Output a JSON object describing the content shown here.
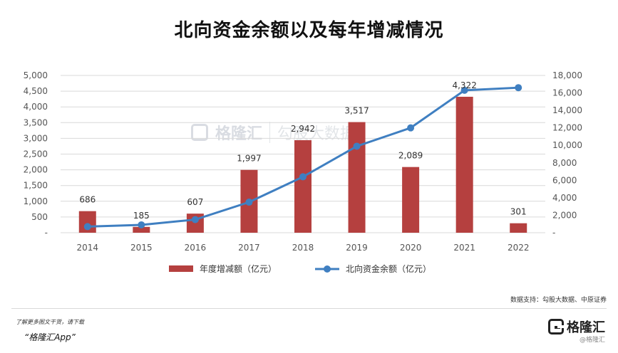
{
  "title": "北向资金余额以及每年增减情况",
  "watermark": {
    "brand": "格隆汇",
    "brand2": "勾股大数据"
  },
  "source": "数据支持：勾股大数据、中原证券",
  "footer": {
    "promo": "了解更多图文干货，请下载",
    "app": "“格隆汇App”",
    "brand": "格隆汇",
    "brand_sub": "@格隆汇"
  },
  "colors": {
    "bar": "#b5403f",
    "line": "#3f7fc1",
    "grid": "#d9d9d9",
    "axis_text": "#555555"
  },
  "chart_data": {
    "type": "bar+line",
    "categories": [
      "2014",
      "2015",
      "2016",
      "2017",
      "2018",
      "2019",
      "2020",
      "2021",
      "2022"
    ],
    "series": [
      {
        "name": "年度增减额（亿元）",
        "type": "bar",
        "axis": "left",
        "values": [
          686,
          185,
          607,
          1997,
          2942,
          3517,
          2089,
          4322,
          301
        ],
        "labels": [
          "686",
          "185",
          "607",
          "1,997",
          "2,942",
          "3,517",
          "2,089",
          "4,322",
          "301"
        ]
      },
      {
        "name": "北向资金余额（亿元）",
        "type": "line",
        "axis": "right",
        "values": [
          700,
          900,
          1500,
          3500,
          6400,
          9900,
          12000,
          16300,
          16600
        ]
      }
    ],
    "y_left": {
      "range": [
        0,
        5000
      ],
      "ticks": [
        "-",
        "500",
        "1,000",
        "1,500",
        "2,000",
        "2,500",
        "3,000",
        "3,500",
        "4,000",
        "4,500",
        "5,000"
      ]
    },
    "y_right": {
      "range": [
        0,
        18000
      ],
      "ticks": [
        "-",
        "2,000",
        "4,000",
        "6,000",
        "8,000",
        "10,000",
        "12,000",
        "14,000",
        "16,000",
        "18,000"
      ]
    },
    "grid": true,
    "legend": "bottom"
  }
}
